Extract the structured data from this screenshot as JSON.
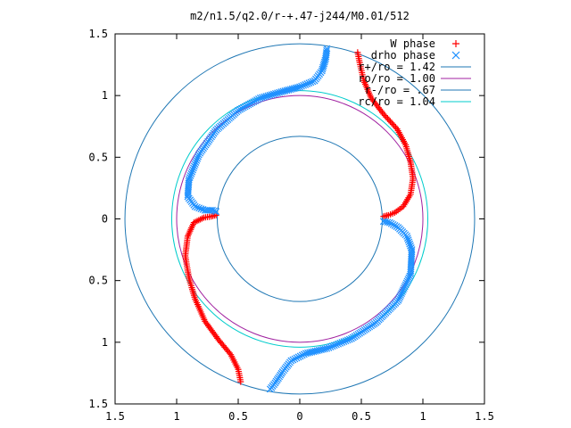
{
  "chart_data": {
    "type": "scatter",
    "title": "m2/n1.5/q2.0/r-+.47-j244/M0.01/512",
    "xlim": [
      -1.5,
      1.5
    ],
    "ylim": [
      -1.5,
      1.5
    ],
    "xticks": [
      -1.5,
      -1,
      -0.5,
      0,
      0.5,
      1,
      1.5
    ],
    "yticks": [
      -1.5,
      -1,
      -0.5,
      0,
      0.5,
      1,
      1.5
    ],
    "xtick_labels": [
      "1.5",
      "1",
      "0.5",
      "0",
      "0.5",
      "1",
      "1.5"
    ],
    "ytick_labels": [
      "1.5",
      "1",
      "0.5",
      "0",
      "0.5",
      "1",
      "1.5"
    ],
    "grid": false,
    "legend_position": "top-right",
    "series": [
      {
        "name": "W phase",
        "marker": "+",
        "color": "#ff0000",
        "arms": [
          [
            [
              0.47,
              1.35
            ],
            [
              0.49,
              1.25
            ],
            [
              0.52,
              1.12
            ],
            [
              0.58,
              0.98
            ],
            [
              0.68,
              0.85
            ],
            [
              0.79,
              0.73
            ],
            [
              0.86,
              0.6
            ],
            [
              0.9,
              0.46
            ],
            [
              0.92,
              0.33
            ],
            [
              0.9,
              0.2
            ],
            [
              0.84,
              0.1
            ],
            [
              0.77,
              0.05
            ],
            [
              0.72,
              0.03
            ],
            [
              0.68,
              0.02
            ]
          ],
          [
            [
              -0.68,
              0.03
            ],
            [
              -0.72,
              0.02
            ],
            [
              -0.78,
              0.01
            ],
            [
              -0.86,
              -0.03
            ],
            [
              -0.91,
              -0.14
            ],
            [
              -0.93,
              -0.3
            ],
            [
              -0.9,
              -0.48
            ],
            [
              -0.85,
              -0.65
            ],
            [
              -0.77,
              -0.83
            ],
            [
              -0.66,
              -0.98
            ],
            [
              -0.56,
              -1.1
            ],
            [
              -0.5,
              -1.22
            ],
            [
              -0.48,
              -1.32
            ]
          ]
        ]
      },
      {
        "name": "drho phase",
        "marker": "x",
        "color": "#1e90ff",
        "arms": [
          [
            [
              0.22,
              1.38
            ],
            [
              0.21,
              1.3
            ],
            [
              0.18,
              1.2
            ],
            [
              0.12,
              1.12
            ],
            [
              0.0,
              1.07
            ],
            [
              -0.15,
              1.03
            ],
            [
              -0.32,
              0.98
            ],
            [
              -0.5,
              0.88
            ],
            [
              -0.68,
              0.72
            ],
            [
              -0.82,
              0.52
            ],
            [
              -0.9,
              0.32
            ],
            [
              -0.91,
              0.18
            ],
            [
              -0.85,
              0.1
            ],
            [
              -0.77,
              0.07
            ],
            [
              -0.71,
              0.07
            ],
            [
              -0.68,
              0.06
            ]
          ],
          [
            [
              0.68,
              -0.02
            ],
            [
              0.73,
              -0.03
            ],
            [
              0.8,
              -0.07
            ],
            [
              0.87,
              -0.14
            ],
            [
              0.91,
              -0.25
            ],
            [
              0.9,
              -0.45
            ],
            [
              0.8,
              -0.66
            ],
            [
              0.62,
              -0.84
            ],
            [
              0.42,
              -0.97
            ],
            [
              0.22,
              -1.05
            ],
            [
              0.05,
              -1.09
            ],
            [
              -0.07,
              -1.15
            ],
            [
              -0.14,
              -1.24
            ],
            [
              -0.2,
              -1.33
            ],
            [
              -0.24,
              -1.38
            ]
          ]
        ]
      }
    ],
    "circles": [
      {
        "label": "r+/ro = 1.42",
        "radius": 1.42,
        "color": "#1f77b4"
      },
      {
        "label": "ro/ro = 1.00",
        "radius": 1.0,
        "color": "#a020a0"
      },
      {
        "label": "r-/ro = .67",
        "radius": 0.67,
        "color": "#1f77b4"
      },
      {
        "label": "rc/ro = 1.04",
        "radius": 1.04,
        "color": "#00cccc"
      }
    ]
  }
}
